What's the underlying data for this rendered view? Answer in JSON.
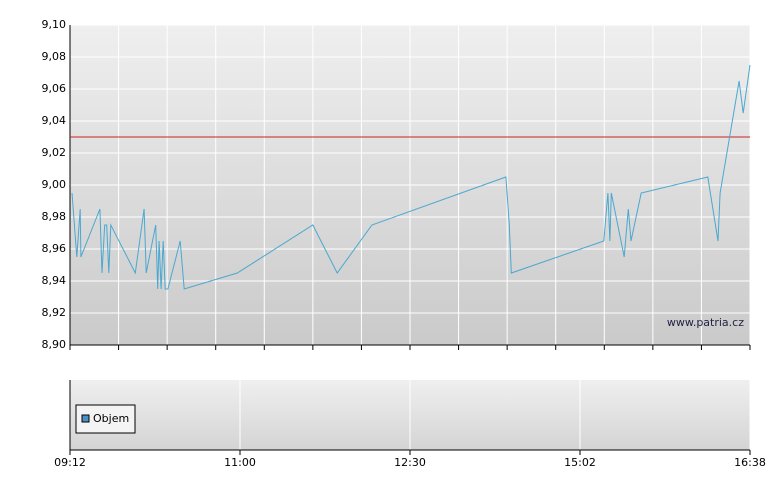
{
  "chart_data": {
    "type": "line",
    "x": [
      0.3,
      1.0,
      1.5,
      1.6,
      4.4,
      4.7,
      5.1,
      5.4,
      5.7,
      6.0,
      9.6,
      10.9,
      11.2,
      12.6,
      12.9,
      13.1,
      13.4,
      13.7,
      14.0,
      14.4,
      16.2,
      16.8,
      24.6,
      35.7,
      39.3,
      44.4,
      64.1,
      64.6,
      64.9,
      78.5,
      79.1,
      79.4,
      79.6,
      81.5,
      82.1,
      82.5,
      84.0,
      93.8,
      95.3,
      95.6,
      98.4,
      99.0,
      100
    ],
    "values": [
      8.995,
      8.955,
      8.985,
      8.955,
      8.985,
      8.945,
      8.975,
      8.975,
      8.945,
      8.975,
      8.945,
      8.985,
      8.945,
      8.975,
      8.935,
      8.965,
      8.935,
      8.965,
      8.935,
      8.935,
      8.965,
      8.935,
      8.945,
      8.975,
      8.945,
      8.975,
      9.005,
      8.975,
      8.945,
      8.965,
      8.995,
      8.965,
      8.995,
      8.955,
      8.985,
      8.965,
      8.995,
      9.005,
      8.965,
      8.995,
      9.065,
      9.045,
      9.075
    ],
    "color": "#4aa8d0",
    "reference_line": 9.03,
    "reference_color": "#cc2222",
    "xlim": [
      0,
      100
    ],
    "xticks": [
      {
        "value": 0,
        "label": "09:12"
      },
      {
        "value": 25,
        "label": "11:00"
      },
      {
        "value": 50,
        "label": "12:30"
      },
      {
        "value": 75,
        "label": "15:02"
      },
      {
        "value": 100,
        "label": "16:38"
      }
    ],
    "ylim": [
      8.9,
      9.1
    ],
    "yticks": [
      {
        "value": 8.9,
        "label": "8,90"
      },
      {
        "value": 8.92,
        "label": "8,92"
      },
      {
        "value": 8.94,
        "label": "8,94"
      },
      {
        "value": 8.96,
        "label": "8,96"
      },
      {
        "value": 8.98,
        "label": "8,98"
      },
      {
        "value": 9.0,
        "label": "9,00"
      },
      {
        "value": 9.02,
        "label": "9,02"
      },
      {
        "value": 9.04,
        "label": "9,04"
      },
      {
        "value": 9.06,
        "label": "9,06"
      },
      {
        "value": 9.08,
        "label": "9,08"
      },
      {
        "value": 9.1,
        "label": "9,10"
      }
    ],
    "grid": true,
    "watermark": "www.patria.cz",
    "volume_legend": "Objem",
    "volume_color": "#4a90c8"
  }
}
